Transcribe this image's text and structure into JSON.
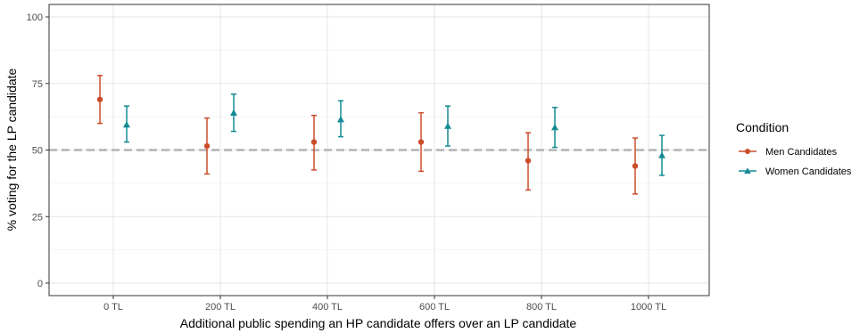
{
  "chart_data": {
    "type": "scatter",
    "subtype": "point-with-error-bars",
    "xlabel": "Additional public spending an HP candidate offers over an LP candidate",
    "ylabel": "% voting for the LP candidate",
    "categories": [
      "0 TL",
      "200 TL",
      "400 TL",
      "600 TL",
      "800 TL",
      "1000 TL"
    ],
    "ylim": [
      0,
      100
    ],
    "yticks": [
      0,
      25,
      50,
      75,
      100
    ],
    "reference_line": {
      "y": 50,
      "style": "dashed",
      "color": "#b3b3b3"
    },
    "grid": true,
    "legend": {
      "title": "Condition",
      "position": "right"
    },
    "series": [
      {
        "name": "Men Candidates",
        "color": "#cc4c2a",
        "marker": "circle",
        "values": [
          69,
          51.5,
          53,
          53,
          46,
          44
        ],
        "lower": [
          60,
          41,
          42.5,
          42,
          35,
          33.5
        ],
        "upper": [
          78,
          62,
          63,
          64,
          56.5,
          54.5
        ]
      },
      {
        "name": "Women Candidates",
        "color": "#138a94",
        "marker": "triangle",
        "values": [
          59.5,
          64,
          61.5,
          59,
          58.5,
          48
        ],
        "lower": [
          53,
          57,
          55,
          51.5,
          51,
          40.5
        ],
        "upper": [
          66.5,
          71,
          68.5,
          66.5,
          66,
          55.5
        ]
      }
    ]
  }
}
